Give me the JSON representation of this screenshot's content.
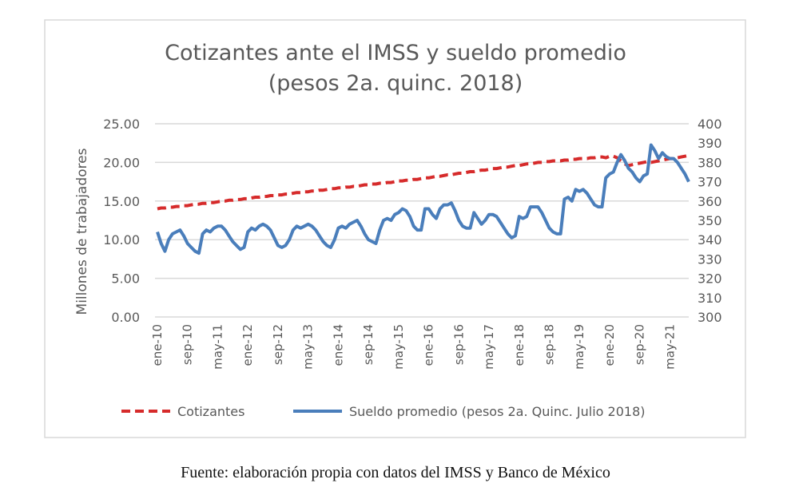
{
  "chart_data": {
    "type": "line",
    "title": "Cotizantes ante el IMSS y sueldo promedio",
    "subtitle": "(pesos 2a. quinc. 2018)",
    "ylabel": "Millones de trabajadores",
    "ylim": [
      0,
      25
    ],
    "y_ticks": [
      "0.00",
      "5.00",
      "10.00",
      "15.00",
      "20.00",
      "25.00"
    ],
    "y2lim": [
      300,
      400
    ],
    "y2_ticks": [
      "300",
      "310",
      "320",
      "330",
      "340",
      "350",
      "360",
      "370",
      "380",
      "390",
      "400"
    ],
    "x_start": "ene-10",
    "x_end": "oct-21",
    "x_frequency": "monthly",
    "x_tick_labels": [
      "ene-10",
      "sep-10",
      "may-11",
      "ene-12",
      "sep-12",
      "may-13",
      "ene-14",
      "sep-14",
      "may-15",
      "ene-16",
      "sep-16",
      "may-17",
      "ene-18",
      "sep-18",
      "may-19",
      "ene-20",
      "sep-20",
      "may-21"
    ],
    "x_tick_every_months": 8,
    "grid": true,
    "legend_position": "bottom",
    "series": [
      {
        "name": "Cotizantes",
        "axis": "left",
        "color": "#d62b2b",
        "style": "dashed",
        "values": [
          14.0,
          14.1,
          14.1,
          14.2,
          14.2,
          14.3,
          14.3,
          14.4,
          14.4,
          14.5,
          14.6,
          14.6,
          14.7,
          14.7,
          14.8,
          14.8,
          14.9,
          15.0,
          15.0,
          15.1,
          15.1,
          15.2,
          15.2,
          15.3,
          15.3,
          15.4,
          15.5,
          15.5,
          15.6,
          15.6,
          15.7,
          15.7,
          15.8,
          15.8,
          15.9,
          15.9,
          16.0,
          16.1,
          16.1,
          16.2,
          16.2,
          16.3,
          16.3,
          16.4,
          16.4,
          16.5,
          16.6,
          16.6,
          16.7,
          16.7,
          16.8,
          16.8,
          16.9,
          16.9,
          17.0,
          17.1,
          17.1,
          17.2,
          17.2,
          17.3,
          17.3,
          17.4,
          17.4,
          17.5,
          17.6,
          17.6,
          17.7,
          17.7,
          17.8,
          17.8,
          17.9,
          18.0,
          18.0,
          18.1,
          18.2,
          18.2,
          18.3,
          18.4,
          18.4,
          18.5,
          18.6,
          18.6,
          18.7,
          18.8,
          18.8,
          18.9,
          19.0,
          19.0,
          19.1,
          19.2,
          19.2,
          19.3,
          19.4,
          19.4,
          19.5,
          19.6,
          19.6,
          19.7,
          19.8,
          19.8,
          19.9,
          20.0,
          20.0,
          20.1,
          20.1,
          20.2,
          20.2,
          20.2,
          20.3,
          20.3,
          20.4,
          20.4,
          20.5,
          20.5,
          20.5,
          20.6,
          20.6,
          20.7,
          20.7,
          20.6,
          20.8,
          20.8,
          20.6,
          20.2,
          19.8,
          19.6,
          19.7,
          19.8,
          19.9,
          20.0,
          20.1,
          20.0,
          20.1,
          20.2,
          20.3,
          20.4,
          20.5,
          20.5,
          20.6,
          20.7,
          20.8,
          20.9
        ]
      },
      {
        "name": "Sueldo promedio (pesos 2a. Quinc. Julio 2018)",
        "axis": "right",
        "color": "#4a7ebb",
        "style": "solid",
        "values": [
          344,
          338,
          334,
          340,
          343,
          344,
          345,
          342,
          338,
          336,
          334,
          333,
          343,
          345,
          344,
          346,
          347,
          347,
          345,
          342,
          339,
          337,
          335,
          336,
          344,
          346,
          345,
          347,
          348,
          347,
          345,
          341,
          337,
          336,
          337,
          340,
          345,
          347,
          346,
          347,
          348,
          347,
          345,
          342,
          339,
          337,
          336,
          340,
          346,
          347,
          346,
          348,
          349,
          350,
          347,
          343,
          340,
          339,
          338,
          345,
          350,
          351,
          350,
          353,
          354,
          356,
          355,
          352,
          347,
          345,
          345,
          356,
          356,
          353,
          351,
          356,
          358,
          358,
          359,
          355,
          350,
          347,
          346,
          346,
          354,
          351,
          348,
          350,
          353,
          353,
          352,
          349,
          346,
          343,
          341,
          342,
          352,
          351,
          352,
          357,
          357,
          357,
          354,
          350,
          346,
          344,
          343,
          343,
          361,
          362,
          360,
          366,
          365,
          366,
          364,
          361,
          358,
          357,
          357,
          372,
          374,
          375,
          380,
          384,
          381,
          377,
          375,
          372,
          370,
          373,
          374,
          389,
          386,
          382,
          385,
          383,
          382,
          382,
          380,
          377,
          374,
          370
        ]
      }
    ]
  },
  "caption": "Fuente: elaboración propia con datos del IMSS y Banco de México"
}
